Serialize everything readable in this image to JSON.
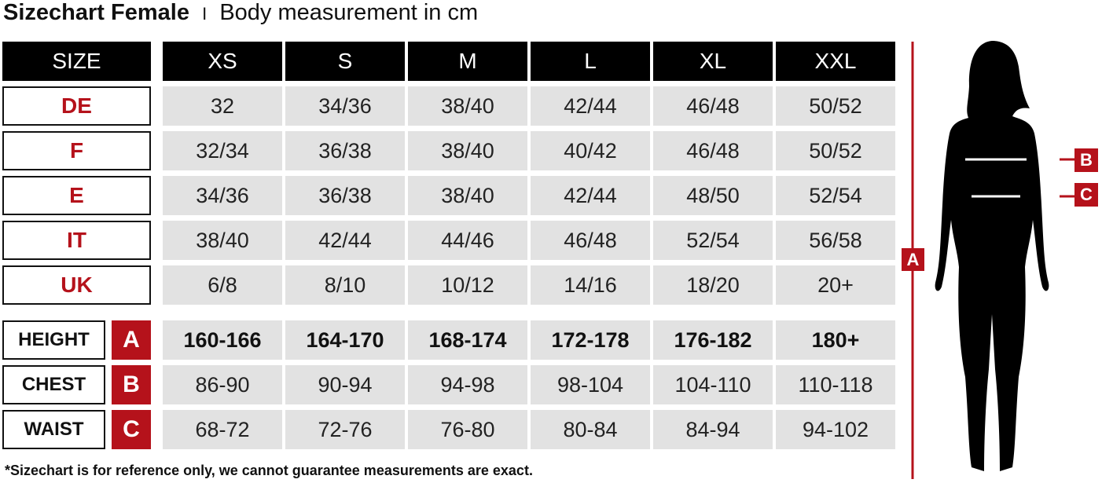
{
  "title": {
    "bold": "Sizechart Female",
    "separator": "I",
    "subtitle": "Body measurement in cm"
  },
  "header": {
    "label": "SIZE",
    "sizes": [
      "XS",
      "S",
      "M",
      "L",
      "XL",
      "XXL"
    ]
  },
  "size_rows": [
    {
      "label": "DE",
      "values": [
        "32",
        "34/36",
        "38/40",
        "42/44",
        "46/48",
        "50/52"
      ]
    },
    {
      "label": "F",
      "values": [
        "32/34",
        "36/38",
        "38/40",
        "40/42",
        "46/48",
        "50/52"
      ]
    },
    {
      "label": "E",
      "values": [
        "34/36",
        "36/38",
        "38/40",
        "42/44",
        "48/50",
        "52/54"
      ]
    },
    {
      "label": "IT",
      "values": [
        "38/40",
        "42/44",
        "44/46",
        "46/48",
        "52/54",
        "56/58"
      ]
    },
    {
      "label": "UK",
      "values": [
        "6/8",
        "8/10",
        "10/12",
        "14/16",
        "18/20",
        "20+"
      ]
    }
  ],
  "measure_rows": [
    {
      "label": "HEIGHT",
      "key": "A",
      "values": [
        "160-166",
        "164-170",
        "168-174",
        "172-178",
        "176-182",
        "180+"
      ]
    },
    {
      "label": "CHEST",
      "key": "B",
      "values": [
        "86-90",
        "90-94",
        "94-98",
        "98-104",
        "104-110",
        "110-118"
      ]
    },
    {
      "label": "WAIST",
      "key": "C",
      "values": [
        "68-72",
        "72-76",
        "76-80",
        "80-84",
        "84-94",
        "94-102"
      ]
    }
  ],
  "figure": {
    "height_key": "A",
    "chest_key": "B",
    "waist_key": "C"
  },
  "footnote": "*Sizechart is for reference only, we cannot guarantee measurements are exact.",
  "colors": {
    "accent": "#b5121b",
    "header": "#000000",
    "cell": "#e2e2e2"
  }
}
